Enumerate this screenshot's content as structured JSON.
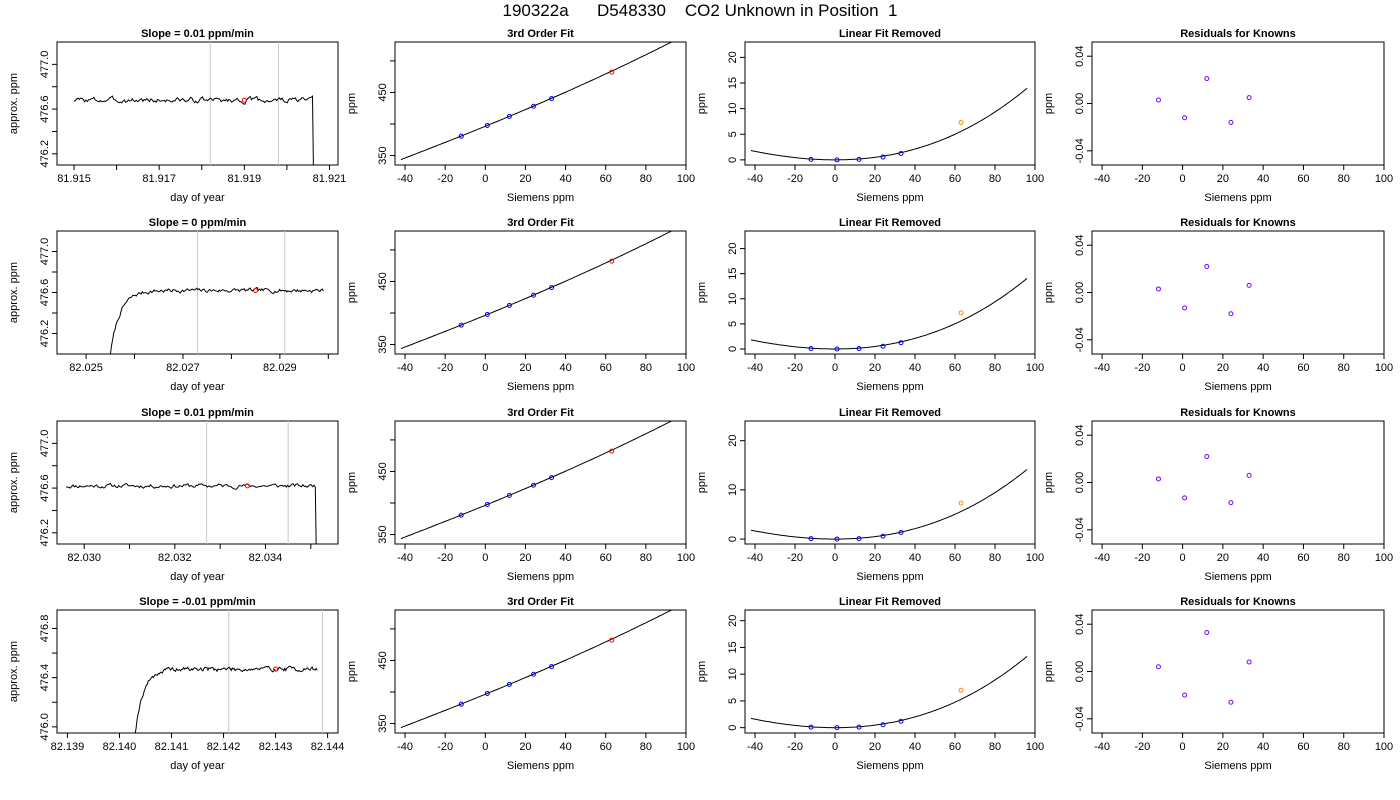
{
  "title": "190322a      D548330    CO2 Unknown in Position  1",
  "colors": {
    "trace": "#000000",
    "marker_red": "#ff0000",
    "marker_blue": "#0000ff",
    "marker_orange": "#ff8c00",
    "marker_purple": "#8000ff",
    "window_lines": "#c8c8c8",
    "frame": "#000000"
  },
  "chart_data": [
    {
      "type": "line",
      "title": "Slope =  0.01  ppm/min",
      "xlabel": "day of year",
      "ylabel": "approx. ppm",
      "xlim": [
        81.9146,
        81.9212
      ],
      "ylim": [
        476.1,
        477.2
      ],
      "xticks": [
        81.915,
        81.916,
        81.917,
        81.918,
        81.919,
        81.92,
        81.921
      ],
      "xticklabels": [
        "81.915",
        "",
        "81.917",
        "",
        "81.919",
        "",
        "81.921"
      ],
      "yticks": [
        476.2,
        476.4,
        476.6,
        476.8,
        477.0
      ],
      "yticklabels": [
        "476.2",
        "",
        "476.6",
        "",
        "477.0"
      ],
      "vlines": [
        81.9182,
        81.9198
      ],
      "point": {
        "x": 81.919,
        "y": 476.68
      },
      "trace": {
        "start": 81.915,
        "end": 81.9206,
        "level": 476.68,
        "noise": 0.018,
        "rise_from": null,
        "drop_at": 81.9206,
        "seed": 3
      }
    },
    {
      "type": "scatter",
      "title": "3rd Order Fit",
      "xlabel": "Siemens ppm",
      "ylabel": "ppm",
      "xlim": [
        -45,
        100
      ],
      "ylim": [
        335,
        530
      ],
      "xticks": [
        -40,
        -20,
        0,
        20,
        40,
        60,
        80,
        100
      ],
      "xticklabels": [
        "-40",
        "-20",
        "0",
        "20",
        "40",
        "60",
        "80",
        "100"
      ],
      "yticks": [
        350,
        400,
        450,
        500
      ],
      "yticklabels": [
        "350",
        "",
        "450",
        ""
      ],
      "knowns": [
        {
          "x": -12,
          "y": 380.7
        },
        {
          "x": 1,
          "y": 397.7
        },
        {
          "x": 12,
          "y": 412.1
        },
        {
          "x": 24,
          "y": 428.1
        },
        {
          "x": 33,
          "y": 440.3
        }
      ],
      "unknown": {
        "x": 63,
        "y": 482.3
      },
      "curve": {
        "x_start": -42,
        "x_end": 96,
        "a": 396.4,
        "b": 1.3,
        "c": 0.00118,
        "d": 3.5e-06
      }
    },
    {
      "type": "scatter",
      "title": "Linear Fit Removed",
      "xlabel": "Siemens ppm",
      "ylabel": "ppm",
      "xlim": [
        -45,
        100
      ],
      "ylim": [
        -1,
        23
      ],
      "xticks": [
        -40,
        -20,
        0,
        20,
        40,
        60,
        80,
        100
      ],
      "xticklabels": [
        "-40",
        "-20",
        "0",
        "20",
        "40",
        "60",
        "80",
        "100"
      ],
      "yticks": [
        0,
        5,
        10,
        15,
        20
      ],
      "yticklabels": [
        "0",
        "5",
        "10",
        "15",
        "20"
      ],
      "knowns": [
        {
          "x": -12,
          "y": 0.1
        },
        {
          "x": 1,
          "y": 0.0
        },
        {
          "x": 12,
          "y": 0.1
        },
        {
          "x": 24,
          "y": 0.55
        },
        {
          "x": 33,
          "y": 1.25
        }
      ],
      "unknown": {
        "x": 63,
        "y": 7.3
      },
      "curve": {
        "x_start": -42,
        "x_end": 96,
        "a": 0.0,
        "b": 0.0,
        "c": 0.00118,
        "d": 3.5e-06,
        "offset": 0.0
      }
    },
    {
      "type": "scatter",
      "title": "Residuals for Knowns",
      "xlabel": "Siemens ppm",
      "ylabel": "ppm",
      "xlim": [
        -45,
        100
      ],
      "ylim": [
        -0.052,
        0.052
      ],
      "xticks": [
        -40,
        -20,
        0,
        20,
        40,
        60,
        80,
        100
      ],
      "xticklabels": [
        "-40",
        "-20",
        "0",
        "20",
        "40",
        "60",
        "80",
        "100"
      ],
      "yticks": [
        -0.04,
        0.0,
        0.04
      ],
      "yticklabels": [
        "-0.04",
        "0.00",
        "0.04"
      ],
      "residuals": [
        {
          "x": -12,
          "y": 0.003
        },
        {
          "x": 1,
          "y": -0.012
        },
        {
          "x": 12,
          "y": 0.021
        },
        {
          "x": 24,
          "y": -0.016
        },
        {
          "x": 33,
          "y": 0.005
        }
      ]
    },
    {
      "type": "line",
      "title": "Slope =  0  ppm/min",
      "xlabel": "day of year",
      "ylabel": "approx. ppm",
      "xlim": [
        82.0244,
        82.0302
      ],
      "ylim": [
        476.0,
        477.2
      ],
      "xticks": [
        82.025,
        82.026,
        82.027,
        82.028,
        82.029,
        82.03
      ],
      "xticklabels": [
        "82.025",
        "",
        "82.027",
        "",
        "82.029",
        ""
      ],
      "yticks": [
        476.2,
        476.4,
        476.6,
        476.8,
        477.0
      ],
      "yticklabels": [
        "476.2",
        "",
        "476.6",
        "",
        "477.0"
      ],
      "vlines": [
        82.0273,
        82.0291
      ],
      "point": {
        "x": 82.0285,
        "y": 476.62
      },
      "trace": {
        "start": 82.0255,
        "end": 82.0299,
        "level": 476.62,
        "noise": 0.015,
        "rise_from": 476.0,
        "drop_at": null,
        "seed": 7
      }
    },
    {
      "type": "scatter",
      "title": "3rd Order Fit",
      "xlabel": "Siemens ppm",
      "ylabel": "ppm",
      "xlim": [
        -45,
        100
      ],
      "ylim": [
        335,
        530
      ],
      "xticks": [
        -40,
        -20,
        0,
        20,
        40,
        60,
        80,
        100
      ],
      "xticklabels": [
        "-40",
        "-20",
        "0",
        "20",
        "40",
        "60",
        "80",
        "100"
      ],
      "yticks": [
        350,
        400,
        450,
        500
      ],
      "yticklabels": [
        "350",
        "",
        "450",
        ""
      ],
      "knowns": [
        {
          "x": -12,
          "y": 380.7
        },
        {
          "x": 1,
          "y": 397.7
        },
        {
          "x": 12,
          "y": 412.1
        },
        {
          "x": 24,
          "y": 428.1
        },
        {
          "x": 33,
          "y": 440.3
        }
      ],
      "unknown": {
        "x": 63,
        "y": 482.3
      },
      "curve": {
        "x_start": -42,
        "x_end": 96,
        "a": 396.4,
        "b": 1.3,
        "c": 0.00118,
        "d": 3.5e-06
      }
    },
    {
      "type": "scatter",
      "title": "Linear Fit Removed",
      "xlabel": "Siemens ppm",
      "ylabel": "ppm",
      "xlim": [
        -45,
        100
      ],
      "ylim": [
        -1,
        23.5
      ],
      "xticks": [
        -40,
        -20,
        0,
        20,
        40,
        60,
        80,
        100
      ],
      "xticklabels": [
        "-40",
        "-20",
        "0",
        "20",
        "40",
        "60",
        "80",
        "100"
      ],
      "yticks": [
        0,
        5,
        10,
        15,
        20
      ],
      "yticklabels": [
        "0",
        "5",
        "10",
        "15",
        "20"
      ],
      "knowns": [
        {
          "x": -12,
          "y": 0.1
        },
        {
          "x": 1,
          "y": 0.0
        },
        {
          "x": 12,
          "y": 0.1
        },
        {
          "x": 24,
          "y": 0.55
        },
        {
          "x": 33,
          "y": 1.25
        }
      ],
      "unknown": {
        "x": 63,
        "y": 7.2
      },
      "curve": {
        "x_start": -42,
        "x_end": 96,
        "a": 0.0,
        "b": 0.0,
        "c": 0.00118,
        "d": 3.6e-06,
        "offset": 0.0
      }
    },
    {
      "type": "scatter",
      "title": "Residuals for Knowns",
      "xlabel": "Siemens ppm",
      "ylabel": "ppm",
      "xlim": [
        -45,
        100
      ],
      "ylim": [
        -0.052,
        0.052
      ],
      "xticks": [
        -40,
        -20,
        0,
        20,
        40,
        60,
        80,
        100
      ],
      "xticklabels": [
        "-40",
        "-20",
        "0",
        "20",
        "40",
        "60",
        "80",
        "100"
      ],
      "yticks": [
        -0.04,
        0.0,
        0.04
      ],
      "yticklabels": [
        "-0.04",
        "0.00",
        "0.04"
      ],
      "residuals": [
        {
          "x": -12,
          "y": 0.003
        },
        {
          "x": 1,
          "y": -0.013
        },
        {
          "x": 12,
          "y": 0.022
        },
        {
          "x": 24,
          "y": -0.018
        },
        {
          "x": 33,
          "y": 0.006
        }
      ]
    },
    {
      "type": "line",
      "title": "Slope =  0.01  ppm/min",
      "xlabel": "day of year",
      "ylabel": "approx. ppm",
      "xlim": [
        82.0294,
        82.0356
      ],
      "ylim": [
        476.1,
        477.2
      ],
      "xticks": [
        82.03,
        82.031,
        82.032,
        82.033,
        82.034,
        82.035
      ],
      "xticklabels": [
        "82.030",
        "",
        "82.032",
        "",
        "82.034",
        ""
      ],
      "yticks": [
        476.2,
        476.4,
        476.6,
        476.8,
        477.0
      ],
      "yticklabels": [
        "476.2",
        "",
        "476.6",
        "",
        "477.0"
      ],
      "vlines": [
        82.0327,
        82.0345
      ],
      "point": {
        "x": 82.0336,
        "y": 476.62
      },
      "trace": {
        "start": 82.0296,
        "end": 82.0351,
        "level": 476.62,
        "noise": 0.014,
        "rise_from": null,
        "drop_at": 82.0351,
        "seed": 11
      }
    },
    {
      "type": "scatter",
      "title": "3rd Order Fit",
      "xlabel": "Siemens ppm",
      "ylabel": "ppm",
      "xlim": [
        -45,
        100
      ],
      "ylim": [
        335,
        530
      ],
      "xticks": [
        -40,
        -20,
        0,
        20,
        40,
        60,
        80,
        100
      ],
      "xticklabels": [
        "-40",
        "-20",
        "0",
        "20",
        "40",
        "60",
        "80",
        "100"
      ],
      "yticks": [
        350,
        400,
        450,
        500
      ],
      "yticklabels": [
        "350",
        "",
        "450",
        ""
      ],
      "knowns": [
        {
          "x": -12,
          "y": 380.7
        },
        {
          "x": 1,
          "y": 397.7
        },
        {
          "x": 12,
          "y": 412.1
        },
        {
          "x": 24,
          "y": 428.1
        },
        {
          "x": 33,
          "y": 440.3
        }
      ],
      "unknown": {
        "x": 63,
        "y": 482.3
      },
      "curve": {
        "x_start": -42,
        "x_end": 96,
        "a": 396.4,
        "b": 1.3,
        "c": 0.00118,
        "d": 3.5e-06
      }
    },
    {
      "type": "scatter",
      "title": "Linear Fit Removed",
      "xlabel": "Siemens ppm",
      "ylabel": "ppm",
      "xlim": [
        -45,
        100
      ],
      "ylim": [
        -1,
        24
      ],
      "xticks": [
        -40,
        -20,
        0,
        20,
        40,
        60,
        80,
        100
      ],
      "xticklabels": [
        "-40",
        "-20",
        "0",
        "20",
        "40",
        "60",
        "80",
        "100"
      ],
      "yticks": [
        0,
        10,
        20
      ],
      "yticklabels": [
        "0",
        "10",
        "20"
      ],
      "knowns": [
        {
          "x": -12,
          "y": 0.1
        },
        {
          "x": 1,
          "y": 0.0
        },
        {
          "x": 12,
          "y": 0.1
        },
        {
          "x": 24,
          "y": 0.6
        },
        {
          "x": 33,
          "y": 1.35
        }
      ],
      "unknown": {
        "x": 63,
        "y": 7.3
      },
      "curve": {
        "x_start": -42,
        "x_end": 96,
        "a": 0.0,
        "b": 0.0,
        "c": 0.00118,
        "d": 3.7e-06,
        "offset": 0.0
      }
    },
    {
      "type": "scatter",
      "title": "Residuals for Knowns",
      "xlabel": "Siemens ppm",
      "ylabel": "ppm",
      "xlim": [
        -45,
        100
      ],
      "ylim": [
        -0.052,
        0.052
      ],
      "xticks": [
        -40,
        -20,
        0,
        20,
        40,
        60,
        80,
        100
      ],
      "xticklabels": [
        "-40",
        "-20",
        "0",
        "20",
        "40",
        "60",
        "80",
        "100"
      ],
      "yticks": [
        -0.04,
        0.0,
        0.04
      ],
      "yticklabels": [
        "-0.04",
        "0.00",
        "0.04"
      ],
      "residuals": [
        {
          "x": -12,
          "y": 0.003
        },
        {
          "x": 1,
          "y": -0.013
        },
        {
          "x": 12,
          "y": 0.022
        },
        {
          "x": 24,
          "y": -0.017
        },
        {
          "x": 33,
          "y": 0.006
        }
      ]
    },
    {
      "type": "line",
      "title": "Slope =  -0.01  ppm/min",
      "xlabel": "day of year",
      "ylabel": "approx. ppm",
      "xlim": [
        82.1388,
        82.1442
      ],
      "ylim": [
        475.95,
        476.95
      ],
      "xticks": [
        82.139,
        82.14,
        82.141,
        82.142,
        82.143,
        82.144
      ],
      "xticklabels": [
        "82.139",
        "82.140",
        "82.141",
        "82.142",
        "82.143",
        "82.144"
      ],
      "yticks": [
        476.0,
        476.2,
        476.4,
        476.6,
        476.8
      ],
      "yticklabels": [
        "476.0",
        "",
        "476.4",
        "",
        "476.8"
      ],
      "vlines": [
        82.1421,
        82.1439
      ],
      "point": {
        "x": 82.143,
        "y": 476.47
      },
      "trace": {
        "start": 82.1403,
        "end": 82.1438,
        "level": 476.47,
        "noise": 0.014,
        "rise_from": 475.95,
        "drop_at": null,
        "seed": 19
      }
    },
    {
      "type": "scatter",
      "title": "3rd Order Fit",
      "xlabel": "Siemens ppm",
      "ylabel": "ppm",
      "xlim": [
        -45,
        100
      ],
      "ylim": [
        335,
        530
      ],
      "xticks": [
        -40,
        -20,
        0,
        20,
        40,
        60,
        80,
        100
      ],
      "xticklabels": [
        "-40",
        "-20",
        "0",
        "20",
        "40",
        "60",
        "80",
        "100"
      ],
      "yticks": [
        350,
        400,
        450,
        500
      ],
      "yticklabels": [
        "350",
        "",
        "450",
        ""
      ],
      "knowns": [
        {
          "x": -12,
          "y": 380.7
        },
        {
          "x": 1,
          "y": 397.7
        },
        {
          "x": 12,
          "y": 412.1
        },
        {
          "x": 24,
          "y": 428.1
        },
        {
          "x": 33,
          "y": 440.3
        }
      ],
      "unknown": {
        "x": 63,
        "y": 482.3
      },
      "curve": {
        "x_start": -42,
        "x_end": 96,
        "a": 396.4,
        "b": 1.3,
        "c": 0.00118,
        "d": 3.5e-06
      }
    },
    {
      "type": "scatter",
      "title": "Linear Fit Removed",
      "xlabel": "Siemens ppm",
      "ylabel": "ppm",
      "xlim": [
        -45,
        100
      ],
      "ylim": [
        -1,
        22
      ],
      "xticks": [
        -40,
        -20,
        0,
        20,
        40,
        60,
        80,
        100
      ],
      "xticklabels": [
        "-40",
        "-20",
        "0",
        "20",
        "40",
        "60",
        "80",
        "100"
      ],
      "yticks": [
        0,
        5,
        10,
        15,
        20
      ],
      "yticklabels": [
        "0",
        "5",
        "10",
        "15",
        "20"
      ],
      "knowns": [
        {
          "x": -12,
          "y": 0.1
        },
        {
          "x": 1,
          "y": 0.0
        },
        {
          "x": 12,
          "y": 0.1
        },
        {
          "x": 24,
          "y": 0.55
        },
        {
          "x": 33,
          "y": 1.2
        }
      ],
      "unknown": {
        "x": 63,
        "y": 7.0
      },
      "curve": {
        "x_start": -42,
        "x_end": 96,
        "a": 0.0,
        "b": 0.0,
        "c": 0.00112,
        "d": 3.4e-06,
        "offset": 0.0
      }
    },
    {
      "type": "scatter",
      "title": "Residuals for Knowns",
      "xlabel": "Siemens ppm",
      "ylabel": "ppm",
      "xlim": [
        -45,
        100
      ],
      "ylim": [
        -0.052,
        0.052
      ],
      "xticks": [
        -40,
        -20,
        0,
        20,
        40,
        60,
        80,
        100
      ],
      "xticklabels": [
        "-40",
        "-20",
        "0",
        "20",
        "40",
        "60",
        "80",
        "100"
      ],
      "yticks": [
        -0.04,
        0.0,
        0.04
      ],
      "yticklabels": [
        "-0.04",
        "0.00",
        "0.04"
      ],
      "residuals": [
        {
          "x": -12,
          "y": 0.004
        },
        {
          "x": 1,
          "y": -0.02
        },
        {
          "x": 12,
          "y": 0.033
        },
        {
          "x": 24,
          "y": -0.026
        },
        {
          "x": 33,
          "y": 0.008
        }
      ]
    }
  ]
}
